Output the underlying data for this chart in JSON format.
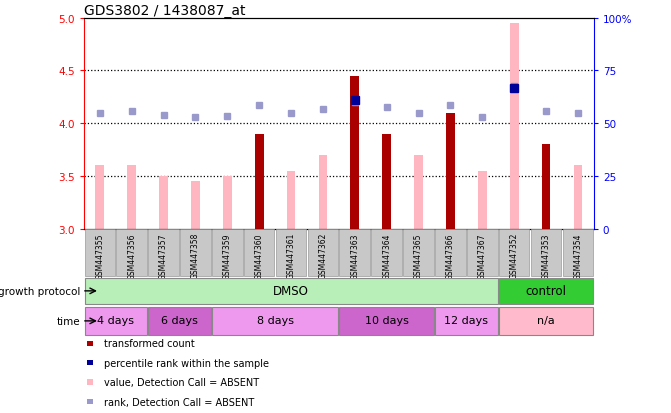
{
  "title": "GDS3802 / 1438087_at",
  "samples": [
    "GSM447355",
    "GSM447356",
    "GSM447357",
    "GSM447358",
    "GSM447359",
    "GSM447360",
    "GSM447361",
    "GSM447362",
    "GSM447363",
    "GSM447364",
    "GSM447365",
    "GSM447366",
    "GSM447367",
    "GSM447352",
    "GSM447353",
    "GSM447354"
  ],
  "transformed_count": [
    null,
    null,
    null,
    null,
    null,
    3.9,
    null,
    null,
    4.45,
    3.9,
    null,
    4.1,
    null,
    null,
    3.8,
    null
  ],
  "value_absent": [
    3.6,
    3.6,
    3.5,
    3.45,
    3.5,
    null,
    3.55,
    3.7,
    null,
    null,
    3.7,
    null,
    3.55,
    4.95,
    null,
    3.6
  ],
  "percentile_rank": [
    null,
    null,
    null,
    null,
    null,
    null,
    null,
    null,
    4.22,
    null,
    null,
    null,
    null,
    4.33,
    null,
    null
  ],
  "rank_absent": [
    4.1,
    4.12,
    4.08,
    4.06,
    4.07,
    4.17,
    4.1,
    4.13,
    4.2,
    4.15,
    4.1,
    4.17,
    4.06,
    4.35,
    4.12,
    4.1
  ],
  "ylim": [
    3.0,
    5.0
  ],
  "y2lim": [
    0,
    100
  ],
  "yticks": [
    3.0,
    3.5,
    4.0,
    4.5,
    5.0
  ],
  "y2ticks": [
    0,
    25,
    50,
    75,
    100
  ],
  "y2tick_labels": [
    "0",
    "25",
    "50",
    "75",
    "100%"
  ],
  "dotted_lines": [
    3.5,
    4.0,
    4.5
  ],
  "growth_protocol_groups": [
    {
      "label": "DMSO",
      "start": 0,
      "end": 12,
      "color": "#B8EEB8"
    },
    {
      "label": "control",
      "start": 13,
      "end": 15,
      "color": "#33CC33"
    }
  ],
  "time_groups": [
    {
      "label": "4 days",
      "start": 0,
      "end": 1,
      "color": "#EE99EE"
    },
    {
      "label": "6 days",
      "start": 2,
      "end": 3,
      "color": "#CC66CC"
    },
    {
      "label": "8 days",
      "start": 4,
      "end": 7,
      "color": "#EE99EE"
    },
    {
      "label": "10 days",
      "start": 8,
      "end": 10,
      "color": "#CC66CC"
    },
    {
      "label": "12 days",
      "start": 11,
      "end": 12,
      "color": "#EE99EE"
    },
    {
      "label": "n/a",
      "start": 13,
      "end": 15,
      "color": "#FFBBCC"
    }
  ],
  "bar_color_dark": "#AA0000",
  "bar_color_light": "#FFB6C1",
  "dot_color_dark": "#000099",
  "dot_color_light": "#9999CC",
  "bar_width": 0.5,
  "legend_items": [
    {
      "label": "transformed count",
      "color": "#AA0000"
    },
    {
      "label": "percentile rank within the sample",
      "color": "#000099"
    },
    {
      "label": "value, Detection Call = ABSENT",
      "color": "#FFB6C1"
    },
    {
      "label": "rank, Detection Call = ABSENT",
      "color": "#9999CC"
    }
  ]
}
